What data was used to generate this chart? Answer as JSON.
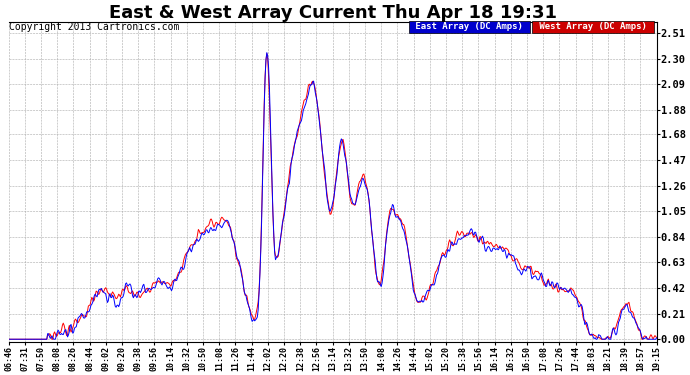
{
  "title": "East & West Array Current Thu Apr 18 19:31",
  "copyright": "Copyright 2013 Cartronics.com",
  "legend_east": "East Array (DC Amps)",
  "legend_west": "West Array (DC Amps)",
  "east_color": "#0000ff",
  "west_color": "#ff0000",
  "east_legend_bg": "#0000cc",
  "west_legend_bg": "#cc0000",
  "legend_text_color": "#ffffff",
  "background_color": "#ffffff",
  "grid_color": "#aaaaaa",
  "yticks": [
    0.0,
    0.21,
    0.42,
    0.63,
    0.84,
    1.05,
    1.26,
    1.47,
    1.68,
    1.88,
    2.09,
    2.3,
    2.51
  ],
  "ylim": [
    -0.02,
    2.6
  ],
  "title_fontsize": 13,
  "copyright_fontsize": 7,
  "xtick_fontsize": 6,
  "ytick_fontsize": 7.5,
  "time_labels": [
    "06:46",
    "07:31",
    "07:50",
    "08:08",
    "08:26",
    "08:44",
    "09:02",
    "09:20",
    "09:38",
    "09:56",
    "10:14",
    "10:32",
    "10:50",
    "11:08",
    "11:26",
    "11:44",
    "12:02",
    "12:20",
    "12:38",
    "12:56",
    "13:14",
    "13:32",
    "13:50",
    "14:08",
    "14:26",
    "14:44",
    "15:02",
    "15:20",
    "15:38",
    "15:56",
    "16:14",
    "16:32",
    "16:50",
    "17:08",
    "17:26",
    "17:44",
    "18:03",
    "18:21",
    "18:39",
    "18:57",
    "19:15"
  ]
}
